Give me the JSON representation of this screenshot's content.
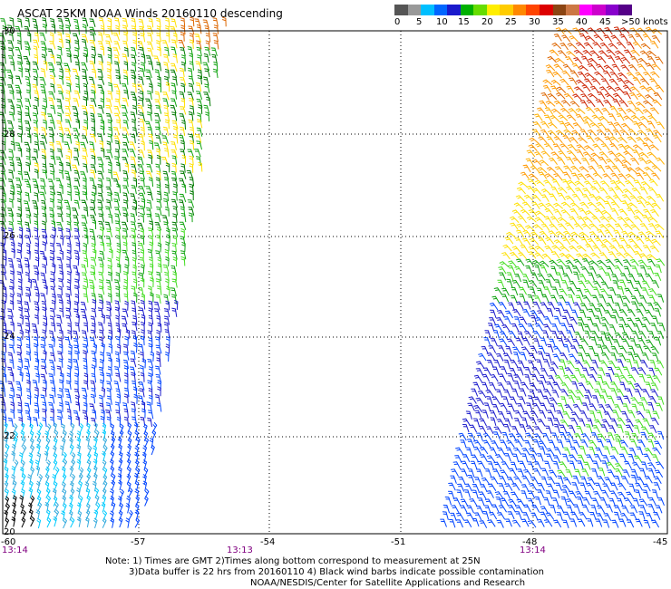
{
  "title": "ASCAT 25KM NOAA Winds 20160110 descending",
  "scale": {
    "labels": [
      "0",
      "5",
      "10",
      "15",
      "20",
      "25",
      "30",
      "35",
      "40",
      "45",
      ">50 knots"
    ],
    "colors": [
      "#555555",
      "#999999",
      "#00bfff",
      "#0066ff",
      "#1a1acc",
      "#00b000",
      "#66dd00",
      "#ffee00",
      "#ffcc00",
      "#ff8800",
      "#ff4400",
      "#dd0000",
      "#8b4513",
      "#cc7744",
      "#ff00ff",
      "#cc00cc",
      "#8800cc",
      "#550088"
    ]
  },
  "map": {
    "latitudes": [
      "30",
      "28",
      "26",
      "24",
      "22",
      "20"
    ],
    "longitudes": [
      "-60",
      "-57",
      "-54",
      "-51",
      "-48",
      "-45"
    ],
    "times": [
      "13:14",
      "13:13",
      "13:14"
    ]
  },
  "notes": {
    "line1": "Note: 1) Times are GMT 2)Times along bottom correspond to measurement at 25N",
    "line2": "3)Data buffer is 22 hrs from 20160110 4) Black wind barbs indicate possible contamination",
    "line3": "NOAA/NESDIS/Center for Satellite Applications and Research"
  },
  "legend_colors": {
    "cyan": "#00ccff",
    "blue": "#1a1acc",
    "blue2": "#0044ff",
    "green": "#11a411",
    "dkgreen": "#007a00",
    "ltgreen": "#44dd22",
    "yellow": "#ffe000",
    "orange": "#ff9900",
    "dkorange": "#dd6600",
    "red": "#cc2200",
    "black": "#000000"
  }
}
